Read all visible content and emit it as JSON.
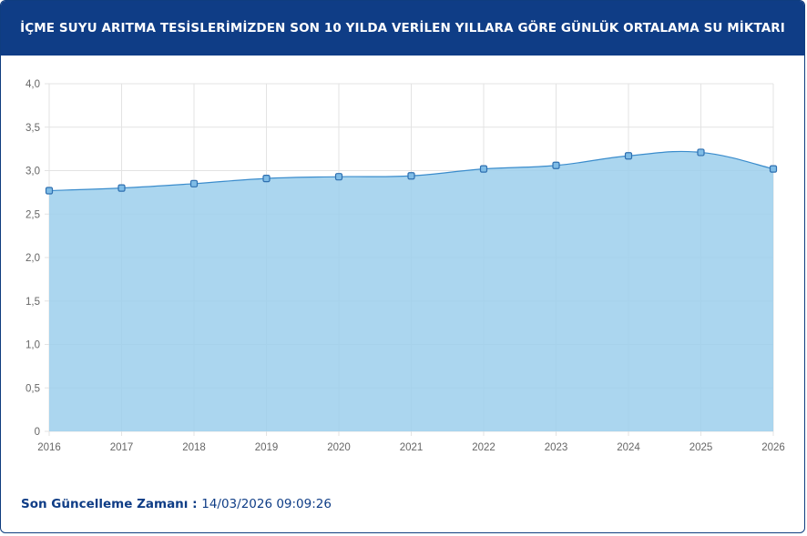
{
  "header": {
    "title": "İÇME SUYU ARITMA TESİSLERİMİZDEN SON 10 YILDA VERİLEN YILLARA GÖRE GÜNLÜK ORTALAMA SU MİKTARI"
  },
  "footer": {
    "label": "Son Güncelleme Zamanı",
    "separator": " : ",
    "timestamp": "14/03/2026 09:09:26"
  },
  "colors": {
    "header_bg": "#0f3d86",
    "area_fill": "#9ccfec",
    "line": "#3a8ccc",
    "marker": "#2e6fb0"
  },
  "chart_data": {
    "type": "area",
    "categories": [
      "2016",
      "2017",
      "2018",
      "2019",
      "2020",
      "2021",
      "2022",
      "2023",
      "2024",
      "2025",
      "2026"
    ],
    "values": [
      2.77,
      2.8,
      2.85,
      2.91,
      2.93,
      2.94,
      3.02,
      3.06,
      3.17,
      3.21,
      3.02
    ],
    "ylim": [
      0,
      4
    ],
    "yticks": [
      "0",
      "0,5",
      "1,0",
      "1,5",
      "2,0",
      "2,5",
      "3,0",
      "3,5",
      "4,0"
    ],
    "grid": true,
    "title": "",
    "xlabel": "",
    "ylabel": ""
  }
}
